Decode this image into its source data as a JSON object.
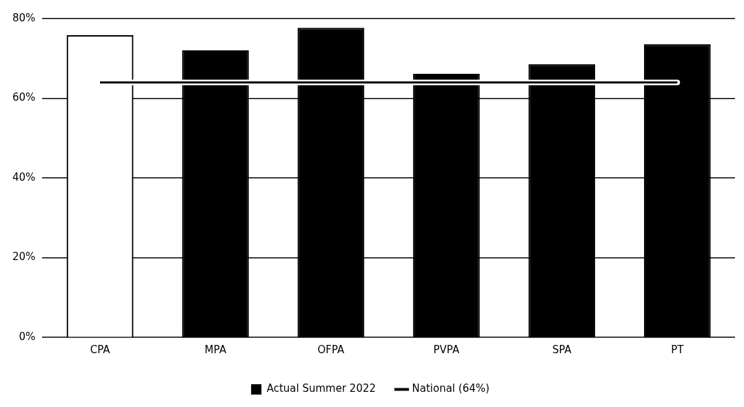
{
  "chart_data": {
    "type": "bar",
    "categories": [
      "CPA",
      "MPA",
      "OFPA",
      "PVPA",
      "SPA",
      "PT"
    ],
    "series": [
      {
        "name": "Actual Summer 2022",
        "color": "#000000",
        "colors": [
          "#ffffff",
          "#000000",
          "#000000",
          "#000000",
          "#000000",
          "#000000"
        ],
        "values": [
          75.5,
          71.7,
          77.3,
          65.8,
          68.2,
          73.2
        ]
      },
      {
        "name": "National (64%)",
        "type": "line",
        "color": "#000000",
        "values": [
          64,
          64,
          64,
          64,
          64,
          64
        ]
      }
    ],
    "ylim": [
      0,
      80
    ],
    "yticks": [
      {
        "value": 0,
        "label": "0%"
      },
      {
        "value": 20,
        "label": "20%"
      },
      {
        "value": 40,
        "label": "40%"
      },
      {
        "value": 60,
        "label": "60%"
      },
      {
        "value": 80,
        "label": "80%"
      }
    ],
    "grid": "y",
    "legend": "bottom",
    "marker": "none"
  }
}
